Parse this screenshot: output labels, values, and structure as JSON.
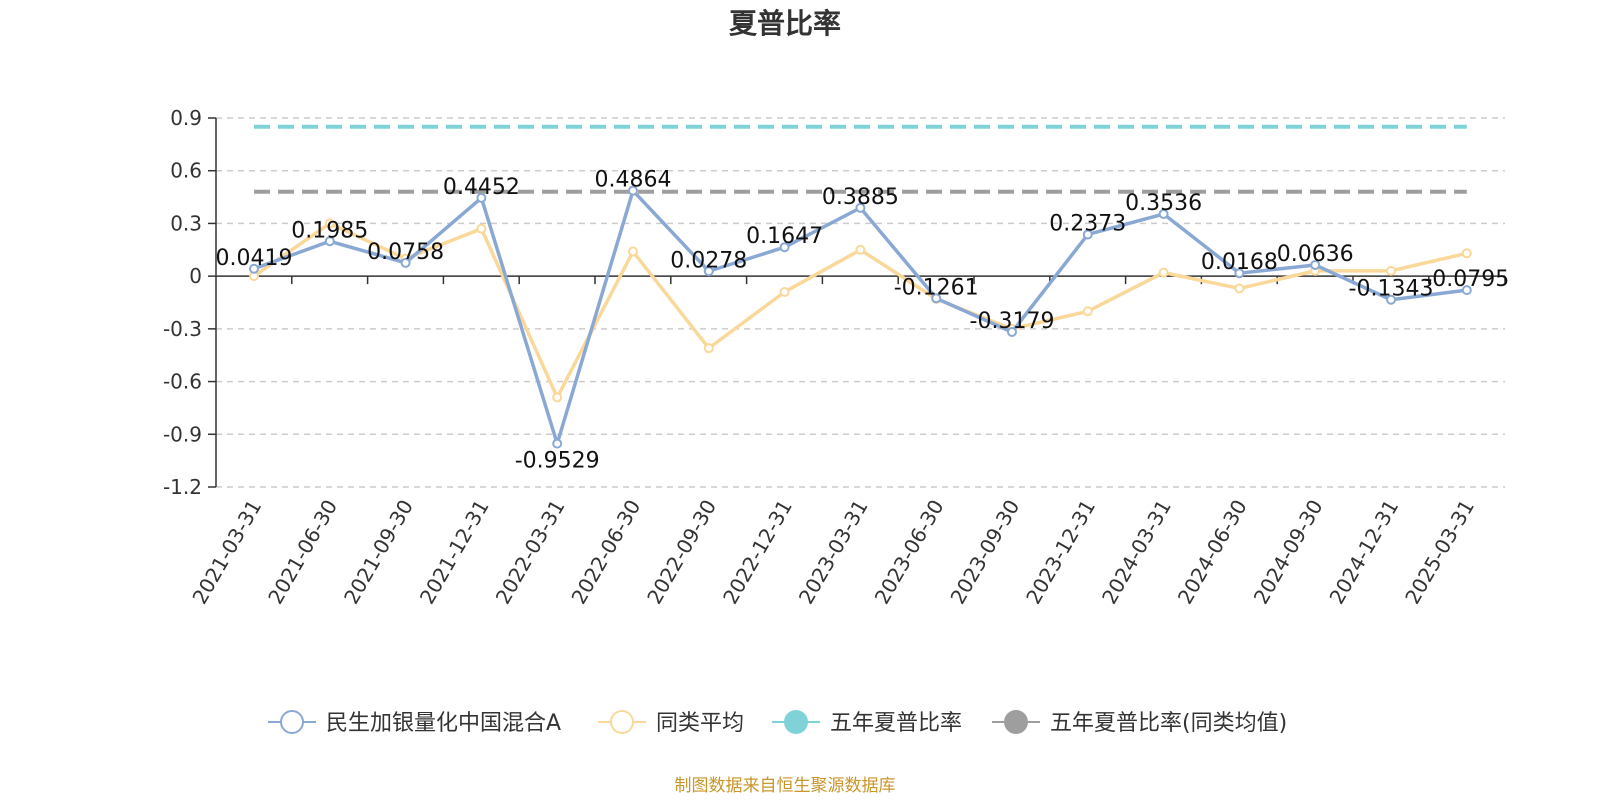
{
  "chart_data": {
    "type": "line",
    "title": "夏普比率",
    "source": "制图数据来自恒生聚源数据库",
    "x": [
      "2021-03-31",
      "2021-06-30",
      "2021-09-30",
      "2021-12-31",
      "2022-03-31",
      "2022-06-30",
      "2022-09-30",
      "2022-12-31",
      "2023-03-31",
      "2023-06-30",
      "2023-09-30",
      "2023-12-31",
      "2024-03-31",
      "2024-06-30",
      "2024-09-30",
      "2024-12-31",
      "2025-03-31"
    ],
    "ylim": [
      -1.2,
      0.9
    ],
    "yticks": [
      0.9,
      0.6,
      0.3,
      0,
      -0.3,
      -0.6,
      -0.9,
      -1.2
    ],
    "grid": true,
    "legend_position": "bottom",
    "series": [
      {
        "name": "民生加银量化中国混合A",
        "color": "#8aa8d4",
        "values": [
          0.0419,
          0.1985,
          0.0758,
          0.4452,
          -0.9529,
          0.4864,
          0.0278,
          0.1647,
          0.3885,
          -0.1261,
          -0.3179,
          0.2373,
          0.3536,
          0.0168,
          0.0636,
          -0.1343,
          -0.0795
        ],
        "labels": [
          "0.0419",
          "0.1985",
          "0.0758",
          "0.4452",
          "-0.9529",
          "0.4864",
          "0.0278",
          "0.1647",
          "0.3885",
          "-0.1261",
          "-0.3179",
          "0.2373",
          "0.3536",
          "0.0168",
          "0.0636",
          "-0.1343",
          "-0.0795"
        ]
      },
      {
        "name": "同类平均",
        "color": "#f9d89a",
        "values": [
          0.0,
          0.3,
          0.1,
          0.27,
          -0.69,
          0.14,
          -0.41,
          -0.09,
          0.15,
          -0.13,
          -0.3,
          -0.2,
          0.02,
          -0.07,
          0.03,
          0.03,
          0.13
        ]
      },
      {
        "name": "五年夏普比率",
        "color": "#7fd3d8",
        "constant": 0.85,
        "dashed": true
      },
      {
        "name": "五年夏普比率(同类均值)",
        "color": "#9e9e9e",
        "constant": 0.48,
        "dashed": true
      }
    ]
  }
}
